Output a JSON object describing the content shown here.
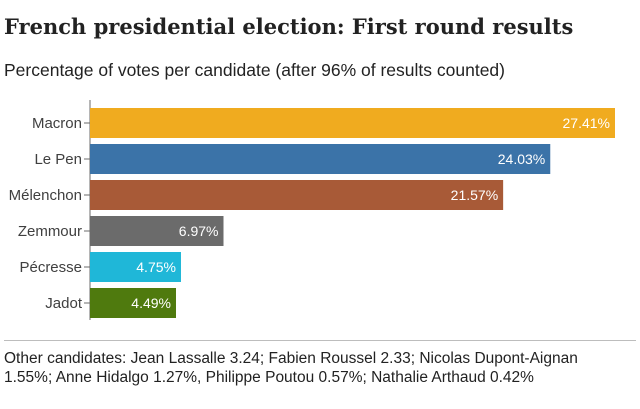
{
  "header": {
    "title": "French presidential election: First round results",
    "subtitle": "Percentage of votes per candidate (after 96% of results counted)"
  },
  "footnote": "Other candidates: Jean Lassalle 3.24; Fabien Roussel 2.33; Nicolas Dupont-Aignan 1.55%; Anne Hidalgo 1.27%, Philippe Poutou 0.57%; Nathalie Arthaud 0.42%",
  "chart_data": {
    "type": "bar",
    "orientation": "horizontal",
    "title": "French presidential election: First round results",
    "subtitle": "Percentage of votes per candidate (after 96% of results counted)",
    "categories": [
      "Macron",
      "Le Pen",
      "Mélenchon",
      "Zemmour",
      "Pécresse",
      "Jadot"
    ],
    "values": [
      27.41,
      24.03,
      21.57,
      6.97,
      4.75,
      4.49
    ],
    "data_labels": [
      "27.41%",
      "24.03%",
      "21.57%",
      "6.97%",
      "4.75%",
      "4.49%"
    ],
    "colors": [
      "#f0ab1f",
      "#3b73a8",
      "#a85a37",
      "#6b6b6b",
      "#1fb7d8",
      "#4f7a0e"
    ],
    "xlim": [
      0,
      27.41
    ],
    "grid": false,
    "legend": "none"
  }
}
